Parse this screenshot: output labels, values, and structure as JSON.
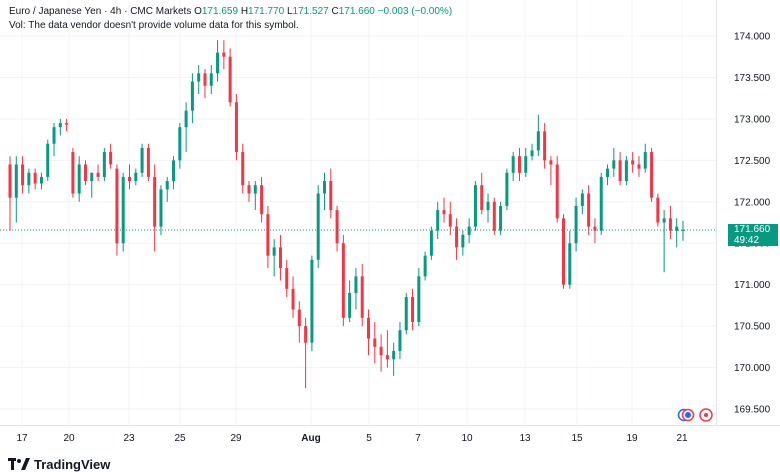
{
  "header": {
    "symbol": "Euro / Japanese Yen · 4h · CMC Markets",
    "o_label": "O",
    "o_value": "171.659",
    "h_label": "H",
    "h_value": "171.770",
    "l_label": "L",
    "l_value": "171.527",
    "c_label": "C",
    "c_value": "171.660",
    "change": "−0.003 (−0.00%)",
    "volume_note": "Vol: The data vendor doesn't provide volume data for this symbol."
  },
  "price_tag": {
    "price": "171.660",
    "countdown": "49:42"
  },
  "logo": {
    "text": "TradingView"
  },
  "colors": {
    "up": "#089981",
    "down": "#f23645",
    "grid": "#f0f3fa",
    "text": "#131722"
  },
  "chart_data": {
    "type": "candlestick",
    "y_ticks": [
      "174.000",
      "173.500",
      "173.000",
      "172.500",
      "172.000",
      "171.500",
      "171.000",
      "170.500",
      "170.000",
      "169.500"
    ],
    "ylim": [
      169.4,
      174.2
    ],
    "x_ticks": [
      "17",
      "20",
      "23",
      "25",
      "29",
      "Aug",
      "5",
      "7",
      "10",
      "13",
      "15",
      "19",
      "21"
    ],
    "candles": [
      [
        172.45,
        172.55,
        171.65,
        172.05
      ],
      [
        172.05,
        172.55,
        171.75,
        172.45
      ],
      [
        172.45,
        172.55,
        172.1,
        172.2
      ],
      [
        172.2,
        172.4,
        172.1,
        172.35
      ],
      [
        172.35,
        172.4,
        172.15,
        172.22
      ],
      [
        172.22,
        172.35,
        172.15,
        172.3
      ],
      [
        172.3,
        172.75,
        172.25,
        172.7
      ],
      [
        172.7,
        172.95,
        172.55,
        172.9
      ],
      [
        172.9,
        173.0,
        172.8,
        172.95
      ],
      [
        172.95,
        173.0,
        172.85,
        172.93
      ],
      [
        172.6,
        172.65,
        172.05,
        172.1
      ],
      [
        172.1,
        172.55,
        172.0,
        172.45
      ],
      [
        172.45,
        172.5,
        172.2,
        172.25
      ],
      [
        172.25,
        172.35,
        172.05,
        172.35
      ],
      [
        172.35,
        172.45,
        172.25,
        172.3
      ],
      [
        172.3,
        172.65,
        172.25,
        172.6
      ],
      [
        172.6,
        172.7,
        172.4,
        172.45
      ],
      [
        172.4,
        172.45,
        171.35,
        171.5
      ],
      [
        171.5,
        172.35,
        171.4,
        172.3
      ],
      [
        172.3,
        172.45,
        172.15,
        172.25
      ],
      [
        172.25,
        172.4,
        172.2,
        172.35
      ],
      [
        172.35,
        172.7,
        172.3,
        172.65
      ],
      [
        172.65,
        172.7,
        172.25,
        172.3
      ],
      [
        172.3,
        172.45,
        171.4,
        171.7
      ],
      [
        171.7,
        172.2,
        171.6,
        172.15
      ],
      [
        172.15,
        172.3,
        172.0,
        172.25
      ],
      [
        172.25,
        172.55,
        172.15,
        172.5
      ],
      [
        172.5,
        172.95,
        172.4,
        172.9
      ],
      [
        172.9,
        173.2,
        172.6,
        173.1
      ],
      [
        173.1,
        173.55,
        172.95,
        173.45
      ],
      [
        173.45,
        173.65,
        173.3,
        173.55
      ],
      [
        173.55,
        173.6,
        173.25,
        173.4
      ],
      [
        173.4,
        173.65,
        173.3,
        173.55
      ],
      [
        173.55,
        173.95,
        173.45,
        173.8
      ],
      [
        173.8,
        173.95,
        173.6,
        173.75
      ],
      [
        173.75,
        173.85,
        173.15,
        173.2
      ],
      [
        173.2,
        173.3,
        172.5,
        172.6
      ],
      [
        172.6,
        172.7,
        172.1,
        172.2
      ],
      [
        172.2,
        172.25,
        172.0,
        172.1
      ],
      [
        172.1,
        172.25,
        171.9,
        172.2
      ],
      [
        172.2,
        172.3,
        171.75,
        171.85
      ],
      [
        171.85,
        171.95,
        171.2,
        171.35
      ],
      [
        171.35,
        171.55,
        171.1,
        171.45
      ],
      [
        171.45,
        171.6,
        171.05,
        171.2
      ],
      [
        171.2,
        171.3,
        170.85,
        170.95
      ],
      [
        170.95,
        171.1,
        170.6,
        170.7
      ],
      [
        170.7,
        170.8,
        170.3,
        170.5
      ],
      [
        170.5,
        170.6,
        169.75,
        170.3
      ],
      [
        170.3,
        171.35,
        170.2,
        171.3
      ],
      [
        171.3,
        172.2,
        171.2,
        172.1
      ],
      [
        172.1,
        172.35,
        171.9,
        172.25
      ],
      [
        172.25,
        172.4,
        171.8,
        171.9
      ],
      [
        171.9,
        171.95,
        171.4,
        171.5
      ],
      [
        171.5,
        171.6,
        170.5,
        170.6
      ],
      [
        170.6,
        171.05,
        170.55,
        170.9
      ],
      [
        170.9,
        171.2,
        170.7,
        171.1
      ],
      [
        171.1,
        171.25,
        170.5,
        170.6
      ],
      [
        170.6,
        170.7,
        170.15,
        170.35
      ],
      [
        170.35,
        170.55,
        170.05,
        170.25
      ],
      [
        170.25,
        170.4,
        169.95,
        170.15
      ],
      [
        170.15,
        170.45,
        170.0,
        170.1
      ],
      [
        170.1,
        170.3,
        169.9,
        170.2
      ],
      [
        170.2,
        170.55,
        170.1,
        170.45
      ],
      [
        170.45,
        170.9,
        170.4,
        170.85
      ],
      [
        170.85,
        170.95,
        170.45,
        170.55
      ],
      [
        170.55,
        171.2,
        170.5,
        171.1
      ],
      [
        171.1,
        171.4,
        171.05,
        171.35
      ],
      [
        171.35,
        171.7,
        171.3,
        171.65
      ],
      [
        171.65,
        172.0,
        171.55,
        171.9
      ],
      [
        171.9,
        172.05,
        171.75,
        171.85
      ],
      [
        171.85,
        172.0,
        171.6,
        171.7
      ],
      [
        171.7,
        171.8,
        171.3,
        171.45
      ],
      [
        171.45,
        171.65,
        171.35,
        171.6
      ],
      [
        171.6,
        171.8,
        171.5,
        171.7
      ],
      [
        171.7,
        172.25,
        171.65,
        172.2
      ],
      [
        172.2,
        172.35,
        171.85,
        171.9
      ],
      [
        171.9,
        172.1,
        171.75,
        172.0
      ],
      [
        172.0,
        172.05,
        171.6,
        171.65
      ],
      [
        171.65,
        172.0,
        171.6,
        171.95
      ],
      [
        171.95,
        172.4,
        171.9,
        172.35
      ],
      [
        172.35,
        172.6,
        172.25,
        172.55
      ],
      [
        172.55,
        172.65,
        172.25,
        172.35
      ],
      [
        172.35,
        172.65,
        172.3,
        172.55
      ],
      [
        172.55,
        172.7,
        172.5,
        172.62
      ],
      [
        172.62,
        173.05,
        172.55,
        172.85
      ],
      [
        172.85,
        172.95,
        172.4,
        172.5
      ],
      [
        172.5,
        172.55,
        172.2,
        172.45
      ],
      [
        172.45,
        172.55,
        171.75,
        171.8
      ],
      [
        171.8,
        171.85,
        170.95,
        171.0
      ],
      [
        171.0,
        171.65,
        170.95,
        171.5
      ],
      [
        171.5,
        172.05,
        171.4,
        171.95
      ],
      [
        171.95,
        172.15,
        171.85,
        172.1
      ],
      [
        172.1,
        172.2,
        171.6,
        171.7
      ],
      [
        171.7,
        171.8,
        171.5,
        171.65
      ],
      [
        171.65,
        172.35,
        171.6,
        172.3
      ],
      [
        172.3,
        172.45,
        172.2,
        172.4
      ],
      [
        172.4,
        172.65,
        172.3,
        172.5
      ],
      [
        172.5,
        172.6,
        172.2,
        172.25
      ],
      [
        172.25,
        172.55,
        172.2,
        172.5
      ],
      [
        172.5,
        172.6,
        172.35,
        172.45
      ],
      [
        172.45,
        172.55,
        172.3,
        172.4
      ],
      [
        172.4,
        172.7,
        172.35,
        172.6
      ],
      [
        172.6,
        172.65,
        172.0,
        172.05
      ],
      [
        172.05,
        172.1,
        171.7,
        171.75
      ],
      [
        171.75,
        171.9,
        171.15,
        171.8
      ],
      [
        171.8,
        171.95,
        171.55,
        171.65
      ],
      [
        171.65,
        171.8,
        171.45,
        171.7
      ],
      [
        171.66,
        171.77,
        171.53,
        171.66
      ]
    ],
    "last_price": 171.66
  }
}
